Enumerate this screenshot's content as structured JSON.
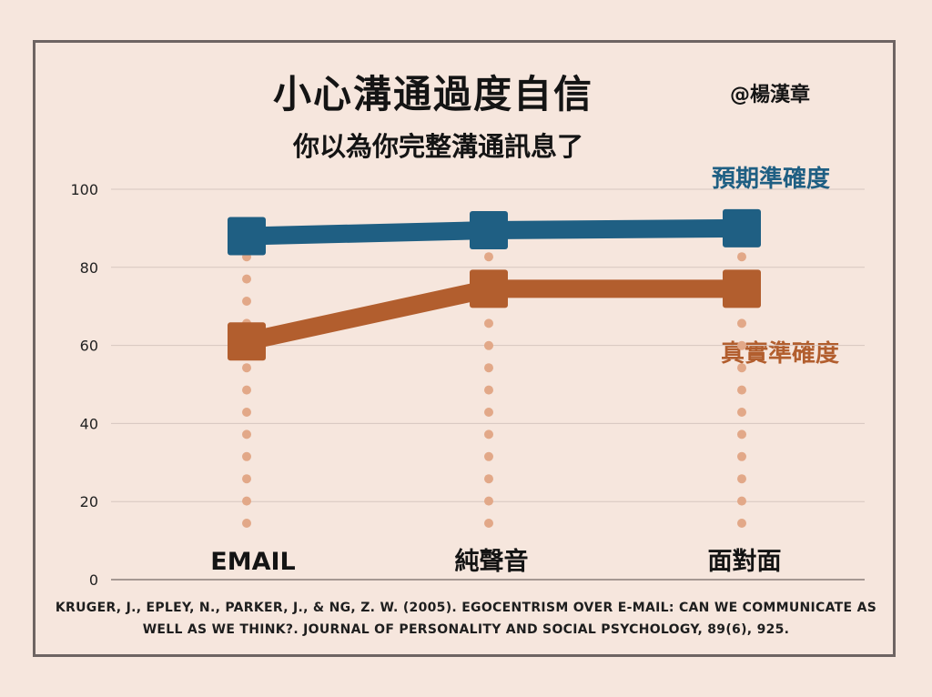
{
  "header": {
    "title": "小心溝通過度自信",
    "subtitle": "你以為你完整溝通訊息了",
    "author": "@楊漢章"
  },
  "citation": "KRUGER, J., EPLEY, N., PARKER, J., & NG, Z. W. (2005). EGOCENTRISM OVER E-MAIL: CAN WE COMMUNICATE AS WELL AS WE THINK?. JOURNAL OF PERSONALITY AND SOCIAL PSYCHOLOGY, 89(6), 925.",
  "chart_data": {
    "type": "line",
    "categories": [
      "EMAIL",
      "純聲音",
      "面對面"
    ],
    "series": [
      {
        "name": "預期準確度",
        "values": [
          88,
          89.5,
          90
        ],
        "color": "#1f5f83"
      },
      {
        "name": "真實準確度",
        "values": [
          61,
          74.5,
          74.5
        ],
        "color": "#b25e2e"
      }
    ],
    "ylim": [
      0,
      100
    ],
    "yticks": [
      0,
      20,
      40,
      60,
      80,
      100
    ],
    "grid": true,
    "legend": "right, inline next to lines",
    "colors": {
      "background": "#f6e6dd",
      "dots": "#e2a888",
      "grid": "#d6c6bf",
      "frame": "#6e6462"
    }
  }
}
